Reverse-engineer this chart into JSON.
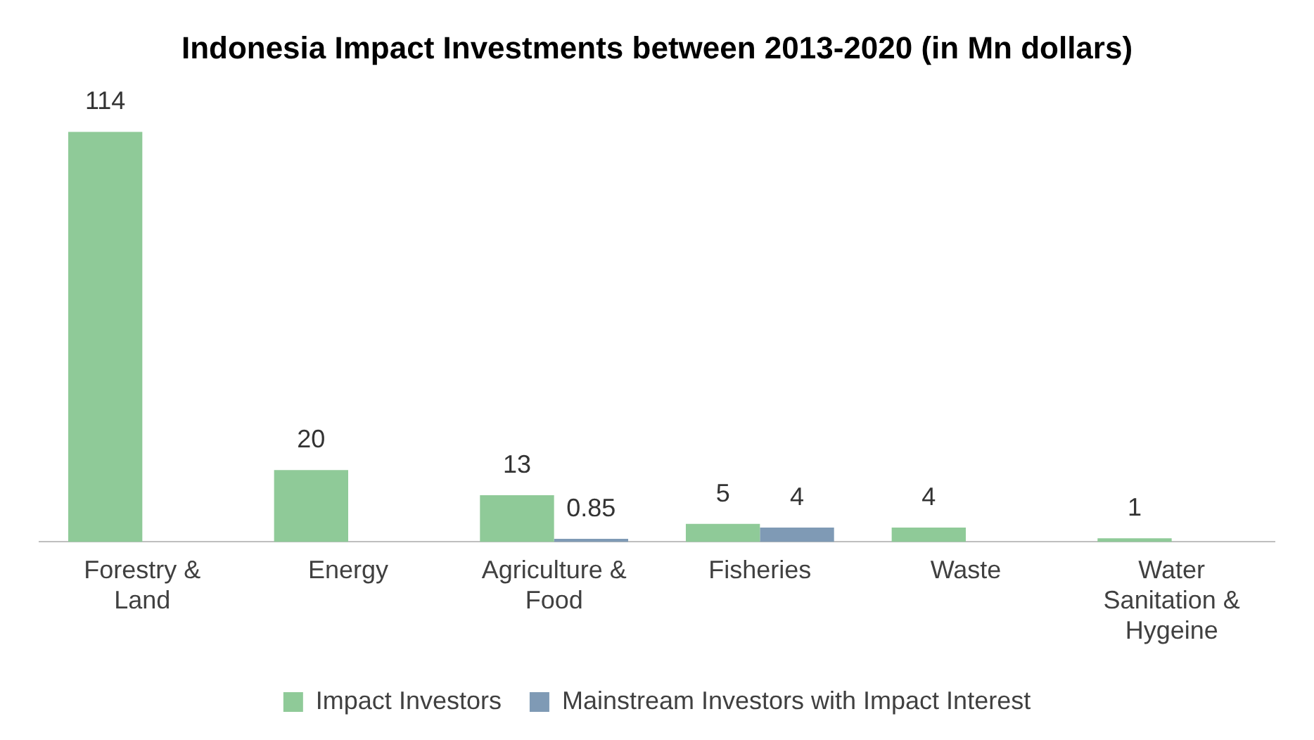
{
  "chart_data": {
    "type": "bar",
    "title": "Indonesia Impact Investments between 2013-2020 (in Mn dollars)",
    "categories": [
      "Forestry & Land",
      "Energy",
      "Agriculture & Food",
      "Fisheries",
      "Waste",
      "Water Sanitation & Hygeine"
    ],
    "series": [
      {
        "name": "Impact Investors",
        "color": "#8fca98",
        "values": [
          114,
          20,
          13,
          5,
          4,
          1
        ]
      },
      {
        "name": "Mainstream Investors with Impact Interest",
        "color": "#7f9ab5",
        "values": [
          null,
          null,
          0.85,
          4,
          null,
          null
        ]
      }
    ],
    "data_labels": true,
    "grid": false,
    "legend": "bottom",
    "tick_labels": "x"
  }
}
